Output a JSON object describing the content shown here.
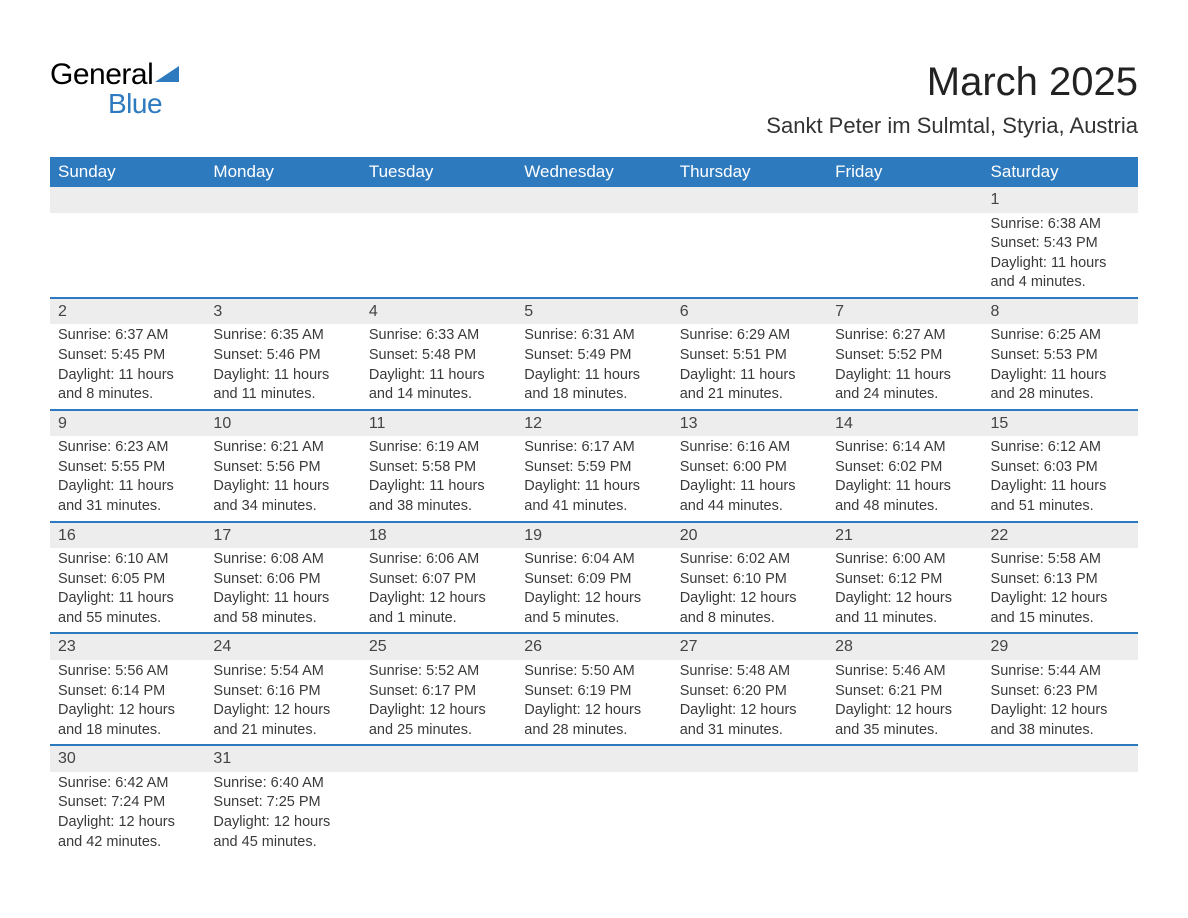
{
  "logo": {
    "text1": "General",
    "text2": "Blue"
  },
  "title": "March 2025",
  "subtitle": "Sankt Peter im Sulmtal, Styria, Austria",
  "colors": {
    "accent": "#2e7abf",
    "header_text": "#ffffff",
    "daynum_bg": "#ededed",
    "text": "#333333",
    "background": "#ffffff"
  },
  "font": {
    "family": "Arial",
    "title_size": 40,
    "subtitle_size": 22,
    "header_size": 17,
    "body_size": 14.5
  },
  "weekdays": [
    "Sunday",
    "Monday",
    "Tuesday",
    "Wednesday",
    "Thursday",
    "Friday",
    "Saturday"
  ],
  "weeks": [
    [
      null,
      null,
      null,
      null,
      null,
      null,
      {
        "n": "1",
        "sr": "Sunrise: 6:38 AM",
        "ss": "Sunset: 5:43 PM",
        "d1": "Daylight: 11 hours",
        "d2": "and 4 minutes."
      }
    ],
    [
      {
        "n": "2",
        "sr": "Sunrise: 6:37 AM",
        "ss": "Sunset: 5:45 PM",
        "d1": "Daylight: 11 hours",
        "d2": "and 8 minutes."
      },
      {
        "n": "3",
        "sr": "Sunrise: 6:35 AM",
        "ss": "Sunset: 5:46 PM",
        "d1": "Daylight: 11 hours",
        "d2": "and 11 minutes."
      },
      {
        "n": "4",
        "sr": "Sunrise: 6:33 AM",
        "ss": "Sunset: 5:48 PM",
        "d1": "Daylight: 11 hours",
        "d2": "and 14 minutes."
      },
      {
        "n": "5",
        "sr": "Sunrise: 6:31 AM",
        "ss": "Sunset: 5:49 PM",
        "d1": "Daylight: 11 hours",
        "d2": "and 18 minutes."
      },
      {
        "n": "6",
        "sr": "Sunrise: 6:29 AM",
        "ss": "Sunset: 5:51 PM",
        "d1": "Daylight: 11 hours",
        "d2": "and 21 minutes."
      },
      {
        "n": "7",
        "sr": "Sunrise: 6:27 AM",
        "ss": "Sunset: 5:52 PM",
        "d1": "Daylight: 11 hours",
        "d2": "and 24 minutes."
      },
      {
        "n": "8",
        "sr": "Sunrise: 6:25 AM",
        "ss": "Sunset: 5:53 PM",
        "d1": "Daylight: 11 hours",
        "d2": "and 28 minutes."
      }
    ],
    [
      {
        "n": "9",
        "sr": "Sunrise: 6:23 AM",
        "ss": "Sunset: 5:55 PM",
        "d1": "Daylight: 11 hours",
        "d2": "and 31 minutes."
      },
      {
        "n": "10",
        "sr": "Sunrise: 6:21 AM",
        "ss": "Sunset: 5:56 PM",
        "d1": "Daylight: 11 hours",
        "d2": "and 34 minutes."
      },
      {
        "n": "11",
        "sr": "Sunrise: 6:19 AM",
        "ss": "Sunset: 5:58 PM",
        "d1": "Daylight: 11 hours",
        "d2": "and 38 minutes."
      },
      {
        "n": "12",
        "sr": "Sunrise: 6:17 AM",
        "ss": "Sunset: 5:59 PM",
        "d1": "Daylight: 11 hours",
        "d2": "and 41 minutes."
      },
      {
        "n": "13",
        "sr": "Sunrise: 6:16 AM",
        "ss": "Sunset: 6:00 PM",
        "d1": "Daylight: 11 hours",
        "d2": "and 44 minutes."
      },
      {
        "n": "14",
        "sr": "Sunrise: 6:14 AM",
        "ss": "Sunset: 6:02 PM",
        "d1": "Daylight: 11 hours",
        "d2": "and 48 minutes."
      },
      {
        "n": "15",
        "sr": "Sunrise: 6:12 AM",
        "ss": "Sunset: 6:03 PM",
        "d1": "Daylight: 11 hours",
        "d2": "and 51 minutes."
      }
    ],
    [
      {
        "n": "16",
        "sr": "Sunrise: 6:10 AM",
        "ss": "Sunset: 6:05 PM",
        "d1": "Daylight: 11 hours",
        "d2": "and 55 minutes."
      },
      {
        "n": "17",
        "sr": "Sunrise: 6:08 AM",
        "ss": "Sunset: 6:06 PM",
        "d1": "Daylight: 11 hours",
        "d2": "and 58 minutes."
      },
      {
        "n": "18",
        "sr": "Sunrise: 6:06 AM",
        "ss": "Sunset: 6:07 PM",
        "d1": "Daylight: 12 hours",
        "d2": "and 1 minute."
      },
      {
        "n": "19",
        "sr": "Sunrise: 6:04 AM",
        "ss": "Sunset: 6:09 PM",
        "d1": "Daylight: 12 hours",
        "d2": "and 5 minutes."
      },
      {
        "n": "20",
        "sr": "Sunrise: 6:02 AM",
        "ss": "Sunset: 6:10 PM",
        "d1": "Daylight: 12 hours",
        "d2": "and 8 minutes."
      },
      {
        "n": "21",
        "sr": "Sunrise: 6:00 AM",
        "ss": "Sunset: 6:12 PM",
        "d1": "Daylight: 12 hours",
        "d2": "and 11 minutes."
      },
      {
        "n": "22",
        "sr": "Sunrise: 5:58 AM",
        "ss": "Sunset: 6:13 PM",
        "d1": "Daylight: 12 hours",
        "d2": "and 15 minutes."
      }
    ],
    [
      {
        "n": "23",
        "sr": "Sunrise: 5:56 AM",
        "ss": "Sunset: 6:14 PM",
        "d1": "Daylight: 12 hours",
        "d2": "and 18 minutes."
      },
      {
        "n": "24",
        "sr": "Sunrise: 5:54 AM",
        "ss": "Sunset: 6:16 PM",
        "d1": "Daylight: 12 hours",
        "d2": "and 21 minutes."
      },
      {
        "n": "25",
        "sr": "Sunrise: 5:52 AM",
        "ss": "Sunset: 6:17 PM",
        "d1": "Daylight: 12 hours",
        "d2": "and 25 minutes."
      },
      {
        "n": "26",
        "sr": "Sunrise: 5:50 AM",
        "ss": "Sunset: 6:19 PM",
        "d1": "Daylight: 12 hours",
        "d2": "and 28 minutes."
      },
      {
        "n": "27",
        "sr": "Sunrise: 5:48 AM",
        "ss": "Sunset: 6:20 PM",
        "d1": "Daylight: 12 hours",
        "d2": "and 31 minutes."
      },
      {
        "n": "28",
        "sr": "Sunrise: 5:46 AM",
        "ss": "Sunset: 6:21 PM",
        "d1": "Daylight: 12 hours",
        "d2": "and 35 minutes."
      },
      {
        "n": "29",
        "sr": "Sunrise: 5:44 AM",
        "ss": "Sunset: 6:23 PM",
        "d1": "Daylight: 12 hours",
        "d2": "and 38 minutes."
      }
    ],
    [
      {
        "n": "30",
        "sr": "Sunrise: 6:42 AM",
        "ss": "Sunset: 7:24 PM",
        "d1": "Daylight: 12 hours",
        "d2": "and 42 minutes."
      },
      {
        "n": "31",
        "sr": "Sunrise: 6:40 AM",
        "ss": "Sunset: 7:25 PM",
        "d1": "Daylight: 12 hours",
        "d2": "and 45 minutes."
      },
      null,
      null,
      null,
      null,
      null
    ]
  ]
}
